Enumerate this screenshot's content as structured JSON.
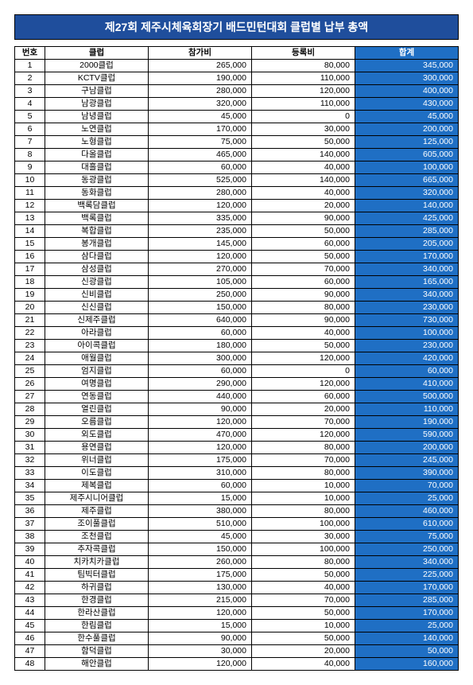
{
  "title": "제27회 제주시체육회장기 배드민턴대회 클럽별 납부 총액",
  "columns": [
    "번호",
    "클럽",
    "참가비",
    "등록비",
    "합계"
  ],
  "rows": [
    {
      "num": 1,
      "club": "2000클럽",
      "fee1": "265,000",
      "fee2": "80,000",
      "total": "345,000"
    },
    {
      "num": 2,
      "club": "KCTV클럽",
      "fee1": "190,000",
      "fee2": "110,000",
      "total": "300,000"
    },
    {
      "num": 3,
      "club": "구남클럽",
      "fee1": "280,000",
      "fee2": "120,000",
      "total": "400,000"
    },
    {
      "num": 4,
      "club": "남광클럽",
      "fee1": "320,000",
      "fee2": "110,000",
      "total": "430,000"
    },
    {
      "num": 5,
      "club": "남녕클럽",
      "fee1": "45,000",
      "fee2": "0",
      "total": "45,000"
    },
    {
      "num": 6,
      "club": "노연클럽",
      "fee1": "170,000",
      "fee2": "30,000",
      "total": "200,000"
    },
    {
      "num": 7,
      "club": "노형클럽",
      "fee1": "75,000",
      "fee2": "50,000",
      "total": "125,000"
    },
    {
      "num": 8,
      "club": "다올클럽",
      "fee1": "465,000",
      "fee2": "140,000",
      "total": "605,000"
    },
    {
      "num": 9,
      "club": "대흘클럽",
      "fee1": "60,000",
      "fee2": "40,000",
      "total": "100,000"
    },
    {
      "num": 10,
      "club": "동광클럽",
      "fee1": "525,000",
      "fee2": "140,000",
      "total": "665,000"
    },
    {
      "num": 11,
      "club": "동화클럽",
      "fee1": "280,000",
      "fee2": "40,000",
      "total": "320,000"
    },
    {
      "num": 12,
      "club": "백록담클럽",
      "fee1": "120,000",
      "fee2": "20,000",
      "total": "140,000"
    },
    {
      "num": 13,
      "club": "백록클럽",
      "fee1": "335,000",
      "fee2": "90,000",
      "total": "425,000"
    },
    {
      "num": 14,
      "club": "복합클럽",
      "fee1": "235,000",
      "fee2": "50,000",
      "total": "285,000"
    },
    {
      "num": 15,
      "club": "봉개클럽",
      "fee1": "145,000",
      "fee2": "60,000",
      "total": "205,000"
    },
    {
      "num": 16,
      "club": "삼다클럽",
      "fee1": "120,000",
      "fee2": "50,000",
      "total": "170,000"
    },
    {
      "num": 17,
      "club": "삼성클럽",
      "fee1": "270,000",
      "fee2": "70,000",
      "total": "340,000"
    },
    {
      "num": 18,
      "club": "신광클럽",
      "fee1": "105,000",
      "fee2": "60,000",
      "total": "165,000"
    },
    {
      "num": 19,
      "club": "신비클럽",
      "fee1": "250,000",
      "fee2": "90,000",
      "total": "340,000"
    },
    {
      "num": 20,
      "club": "신신클럽",
      "fee1": "150,000",
      "fee2": "80,000",
      "total": "230,000"
    },
    {
      "num": 21,
      "club": "신제주클럽",
      "fee1": "640,000",
      "fee2": "90,000",
      "total": "730,000"
    },
    {
      "num": 22,
      "club": "아라클럽",
      "fee1": "60,000",
      "fee2": "40,000",
      "total": "100,000"
    },
    {
      "num": 23,
      "club": "아이콕클럽",
      "fee1": "180,000",
      "fee2": "50,000",
      "total": "230,000"
    },
    {
      "num": 24,
      "club": "애월클럽",
      "fee1": "300,000",
      "fee2": "120,000",
      "total": "420,000"
    },
    {
      "num": 25,
      "club": "엄지클럽",
      "fee1": "60,000",
      "fee2": "0",
      "total": "60,000"
    },
    {
      "num": 26,
      "club": "여명클럽",
      "fee1": "290,000",
      "fee2": "120,000",
      "total": "410,000"
    },
    {
      "num": 27,
      "club": "연동클럽",
      "fee1": "440,000",
      "fee2": "60,000",
      "total": "500,000"
    },
    {
      "num": 28,
      "club": "열린클럽",
      "fee1": "90,000",
      "fee2": "20,000",
      "total": "110,000"
    },
    {
      "num": 29,
      "club": "오름클럽",
      "fee1": "120,000",
      "fee2": "70,000",
      "total": "190,000"
    },
    {
      "num": 30,
      "club": "외도클럽",
      "fee1": "470,000",
      "fee2": "120,000",
      "total": "590,000"
    },
    {
      "num": 31,
      "club": "용연클럽",
      "fee1": "120,000",
      "fee2": "80,000",
      "total": "200,000"
    },
    {
      "num": 32,
      "club": "위너클럽",
      "fee1": "175,000",
      "fee2": "70,000",
      "total": "245,000"
    },
    {
      "num": 33,
      "club": "이도클럽",
      "fee1": "310,000",
      "fee2": "80,000",
      "total": "390,000"
    },
    {
      "num": 34,
      "club": "제복클럽",
      "fee1": "60,000",
      "fee2": "10,000",
      "total": "70,000"
    },
    {
      "num": 35,
      "club": "제주시니어클럽",
      "fee1": "15,000",
      "fee2": "10,000",
      "total": "25,000"
    },
    {
      "num": 36,
      "club": "제주클럽",
      "fee1": "380,000",
      "fee2": "80,000",
      "total": "460,000"
    },
    {
      "num": 37,
      "club": "조이풀클럽",
      "fee1": "510,000",
      "fee2": "100,000",
      "total": "610,000"
    },
    {
      "num": 38,
      "club": "조천클럽",
      "fee1": "45,000",
      "fee2": "30,000",
      "total": "75,000"
    },
    {
      "num": 39,
      "club": "추자콕클럽",
      "fee1": "150,000",
      "fee2": "100,000",
      "total": "250,000"
    },
    {
      "num": 40,
      "club": "치카치카클럽",
      "fee1": "260,000",
      "fee2": "80,000",
      "total": "340,000"
    },
    {
      "num": 41,
      "club": "팀빅터클럽",
      "fee1": "175,000",
      "fee2": "50,000",
      "total": "225,000"
    },
    {
      "num": 42,
      "club": "하귀클럽",
      "fee1": "130,000",
      "fee2": "40,000",
      "total": "170,000"
    },
    {
      "num": 43,
      "club": "한경클럽",
      "fee1": "215,000",
      "fee2": "70,000",
      "total": "285,000"
    },
    {
      "num": 44,
      "club": "한라산클럽",
      "fee1": "120,000",
      "fee2": "50,000",
      "total": "170,000"
    },
    {
      "num": 45,
      "club": "한림클럽",
      "fee1": "15,000",
      "fee2": "10,000",
      "total": "25,000"
    },
    {
      "num": 46,
      "club": "한수풀클럽",
      "fee1": "90,000",
      "fee2": "50,000",
      "total": "140,000"
    },
    {
      "num": 47,
      "club": "함덕클럽",
      "fee1": "30,000",
      "fee2": "20,000",
      "total": "50,000"
    },
    {
      "num": 48,
      "club": "해안클럽",
      "fee1": "120,000",
      "fee2": "40,000",
      "total": "160,000"
    }
  ],
  "colors": {
    "header_bg": "#1f4e9c",
    "total_bg": "#1f6fc4",
    "text_white": "#ffffff",
    "border": "#000000"
  }
}
